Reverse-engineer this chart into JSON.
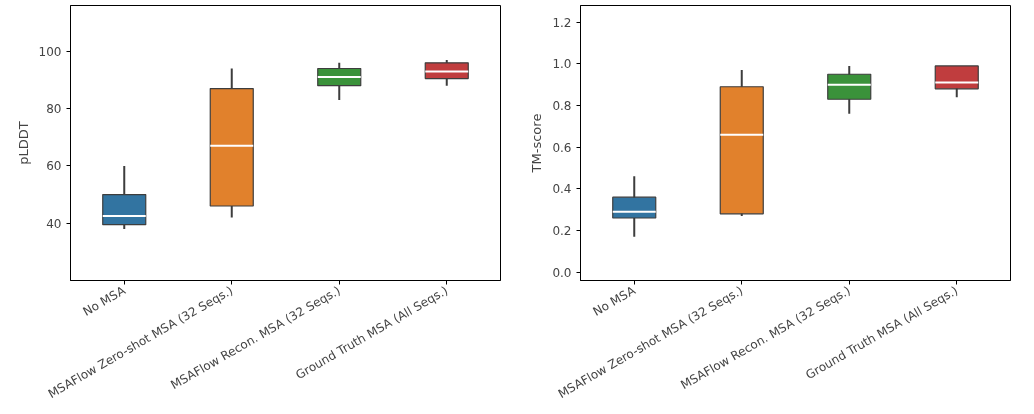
{
  "chart_data": [
    {
      "type": "box",
      "ylabel": "pLDDT",
      "categories": [
        "No MSA",
        "MSAFlow Zero-shot MSA (32 Seqs.)",
        "MSAFlow Recon. MSA (32 Seqs.)",
        "Ground Truth MSA (All Seqs.)"
      ],
      "colors": [
        "#3274a1",
        "#e1812c",
        "#3a923a",
        "#c03d3e"
      ],
      "ylim": [
        20,
        116
      ],
      "yticks": [
        40,
        60,
        80,
        100
      ],
      "grid": false,
      "boxes": [
        {
          "low": 38,
          "q1": 39.5,
          "median": 42.5,
          "q3": 50,
          "high": 60
        },
        {
          "low": 42,
          "q1": 46,
          "median": 67,
          "q3": 87,
          "high": 94
        },
        {
          "low": 83,
          "q1": 88,
          "median": 91,
          "q3": 94,
          "high": 96
        },
        {
          "low": 88,
          "q1": 90.5,
          "median": 93,
          "q3": 96,
          "high": 97
        }
      ]
    },
    {
      "type": "box",
      "ylabel": "TM-score",
      "categories": [
        "No MSA",
        "MSAFlow Zero-shot MSA (32 Seqs.)",
        "MSAFlow Recon. MSA (32 Seqs.)",
        "Ground Truth MSA (All Seqs.)"
      ],
      "colors": [
        "#3274a1",
        "#e1812c",
        "#3a923a",
        "#c03d3e"
      ],
      "ylim": [
        -0.04,
        1.28
      ],
      "yticks": [
        {
          "value": 0,
          "label": "0.0"
        },
        0.2,
        0.4,
        0.6,
        0.8,
        {
          "value": 1,
          "label": "1.0"
        },
        1.2
      ],
      "grid": false,
      "boxes": [
        {
          "low": 0.17,
          "q1": 0.26,
          "median": 0.29,
          "q3": 0.36,
          "high": 0.46
        },
        {
          "low": 0.27,
          "q1": 0.28,
          "median": 0.66,
          "q3": 0.89,
          "high": 0.97
        },
        {
          "low": 0.76,
          "q1": 0.83,
          "median": 0.9,
          "q3": 0.95,
          "high": 0.99
        },
        {
          "low": 0.84,
          "q1": 0.88,
          "median": 0.91,
          "q3": 0.99,
          "high": 0.99
        }
      ]
    }
  ]
}
